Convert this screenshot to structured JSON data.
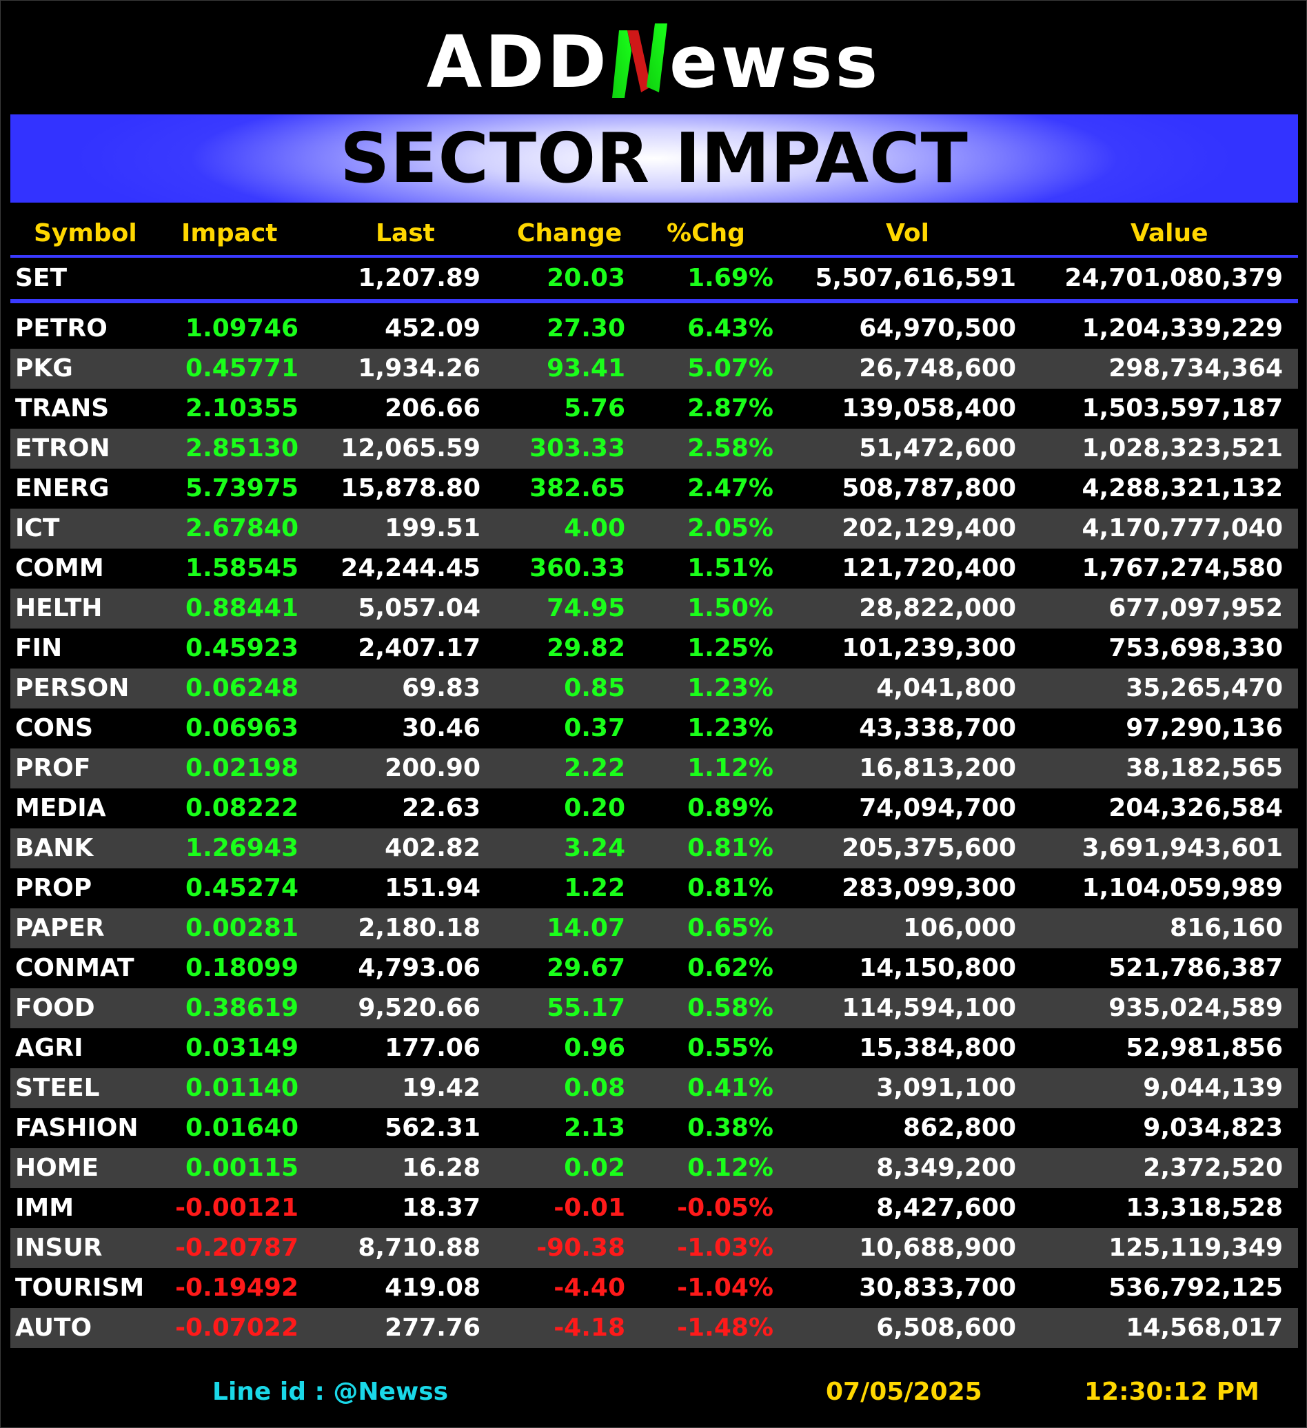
{
  "logo": {
    "part1": "ADD",
    "part2": "ewss"
  },
  "banner": {
    "title": "SECTOR IMPACT"
  },
  "colors": {
    "banner": "#3333ff",
    "positive": "#1aff1a",
    "negative": "#ff1a1a",
    "header": "#ffd700",
    "footer_link": "#1ad8e8"
  },
  "headers": {
    "symbol": "Symbol",
    "impact": "Impact",
    "last": "Last",
    "change": "Change",
    "pct": "%Chg",
    "vol": "Vol",
    "value": "Value"
  },
  "index": {
    "symbol": "SET",
    "impact": "",
    "last": "1,207.89",
    "change": "20.03",
    "pct": "1.69%",
    "vol": "5,507,616,591",
    "value": "24,701,080,379"
  },
  "sectors": [
    {
      "symbol": "PETRO",
      "impact": "1.09746",
      "last": "452.09",
      "change": "27.30",
      "pct": "6.43%",
      "vol": "64,970,500",
      "value": "1,204,339,229",
      "dir": "pos"
    },
    {
      "symbol": "PKG",
      "impact": "0.45771",
      "last": "1,934.26",
      "change": "93.41",
      "pct": "5.07%",
      "vol": "26,748,600",
      "value": "298,734,364",
      "dir": "pos"
    },
    {
      "symbol": "TRANS",
      "impact": "2.10355",
      "last": "206.66",
      "change": "5.76",
      "pct": "2.87%",
      "vol": "139,058,400",
      "value": "1,503,597,187",
      "dir": "pos"
    },
    {
      "symbol": "ETRON",
      "impact": "2.85130",
      "last": "12,065.59",
      "change": "303.33",
      "pct": "2.58%",
      "vol": "51,472,600",
      "value": "1,028,323,521",
      "dir": "pos"
    },
    {
      "symbol": "ENERG",
      "impact": "5.73975",
      "last": "15,878.80",
      "change": "382.65",
      "pct": "2.47%",
      "vol": "508,787,800",
      "value": "4,288,321,132",
      "dir": "pos"
    },
    {
      "symbol": "ICT",
      "impact": "2.67840",
      "last": "199.51",
      "change": "4.00",
      "pct": "2.05%",
      "vol": "202,129,400",
      "value": "4,170,777,040",
      "dir": "pos"
    },
    {
      "symbol": "COMM",
      "impact": "1.58545",
      "last": "24,244.45",
      "change": "360.33",
      "pct": "1.51%",
      "vol": "121,720,400",
      "value": "1,767,274,580",
      "dir": "pos"
    },
    {
      "symbol": "HELTH",
      "impact": "0.88441",
      "last": "5,057.04",
      "change": "74.95",
      "pct": "1.50%",
      "vol": "28,822,000",
      "value": "677,097,952",
      "dir": "pos"
    },
    {
      "symbol": "FIN",
      "impact": "0.45923",
      "last": "2,407.17",
      "change": "29.82",
      "pct": "1.25%",
      "vol": "101,239,300",
      "value": "753,698,330",
      "dir": "pos"
    },
    {
      "symbol": "PERSON",
      "impact": "0.06248",
      "last": "69.83",
      "change": "0.85",
      "pct": "1.23%",
      "vol": "4,041,800",
      "value": "35,265,470",
      "dir": "pos"
    },
    {
      "symbol": "CONS",
      "impact": "0.06963",
      "last": "30.46",
      "change": "0.37",
      "pct": "1.23%",
      "vol": "43,338,700",
      "value": "97,290,136",
      "dir": "pos"
    },
    {
      "symbol": "PROF",
      "impact": "0.02198",
      "last": "200.90",
      "change": "2.22",
      "pct": "1.12%",
      "vol": "16,813,200",
      "value": "38,182,565",
      "dir": "pos"
    },
    {
      "symbol": "MEDIA",
      "impact": "0.08222",
      "last": "22.63",
      "change": "0.20",
      "pct": "0.89%",
      "vol": "74,094,700",
      "value": "204,326,584",
      "dir": "pos"
    },
    {
      "symbol": "BANK",
      "impact": "1.26943",
      "last": "402.82",
      "change": "3.24",
      "pct": "0.81%",
      "vol": "205,375,600",
      "value": "3,691,943,601",
      "dir": "pos"
    },
    {
      "symbol": "PROP",
      "impact": "0.45274",
      "last": "151.94",
      "change": "1.22",
      "pct": "0.81%",
      "vol": "283,099,300",
      "value": "1,104,059,989",
      "dir": "pos"
    },
    {
      "symbol": "PAPER",
      "impact": "0.00281",
      "last": "2,180.18",
      "change": "14.07",
      "pct": "0.65%",
      "vol": "106,000",
      "value": "816,160",
      "dir": "pos"
    },
    {
      "symbol": "CONMAT",
      "impact": "0.18099",
      "last": "4,793.06",
      "change": "29.67",
      "pct": "0.62%",
      "vol": "14,150,800",
      "value": "521,786,387",
      "dir": "pos"
    },
    {
      "symbol": "FOOD",
      "impact": "0.38619",
      "last": "9,520.66",
      "change": "55.17",
      "pct": "0.58%",
      "vol": "114,594,100",
      "value": "935,024,589",
      "dir": "pos"
    },
    {
      "symbol": "AGRI",
      "impact": "0.03149",
      "last": "177.06",
      "change": "0.96",
      "pct": "0.55%",
      "vol": "15,384,800",
      "value": "52,981,856",
      "dir": "pos"
    },
    {
      "symbol": "STEEL",
      "impact": "0.01140",
      "last": "19.42",
      "change": "0.08",
      "pct": "0.41%",
      "vol": "3,091,100",
      "value": "9,044,139",
      "dir": "pos"
    },
    {
      "symbol": "FASHION",
      "impact": "0.01640",
      "last": "562.31",
      "change": "2.13",
      "pct": "0.38%",
      "vol": "862,800",
      "value": "9,034,823",
      "dir": "pos"
    },
    {
      "symbol": "HOME",
      "impact": "0.00115",
      "last": "16.28",
      "change": "0.02",
      "pct": "0.12%",
      "vol": "8,349,200",
      "value": "2,372,520",
      "dir": "pos"
    },
    {
      "symbol": "IMM",
      "impact": "-0.00121",
      "last": "18.37",
      "change": "-0.01",
      "pct": "-0.05%",
      "vol": "8,427,600",
      "value": "13,318,528",
      "dir": "neg"
    },
    {
      "symbol": "INSUR",
      "impact": "-0.20787",
      "last": "8,710.88",
      "change": "-90.38",
      "pct": "-1.03%",
      "vol": "10,688,900",
      "value": "125,119,349",
      "dir": "neg"
    },
    {
      "symbol": "TOURISM",
      "impact": "-0.19492",
      "last": "419.08",
      "change": "-4.40",
      "pct": "-1.04%",
      "vol": "30,833,700",
      "value": "536,792,125",
      "dir": "neg"
    },
    {
      "symbol": "AUTO",
      "impact": "-0.07022",
      "last": "277.76",
      "change": "-4.18",
      "pct": "-1.48%",
      "vol": "6,508,600",
      "value": "14,568,017",
      "dir": "neg"
    }
  ],
  "footer": {
    "line_id": "Line id  : @Newss",
    "date": "07/05/2025",
    "time": "12:30:12 PM"
  }
}
